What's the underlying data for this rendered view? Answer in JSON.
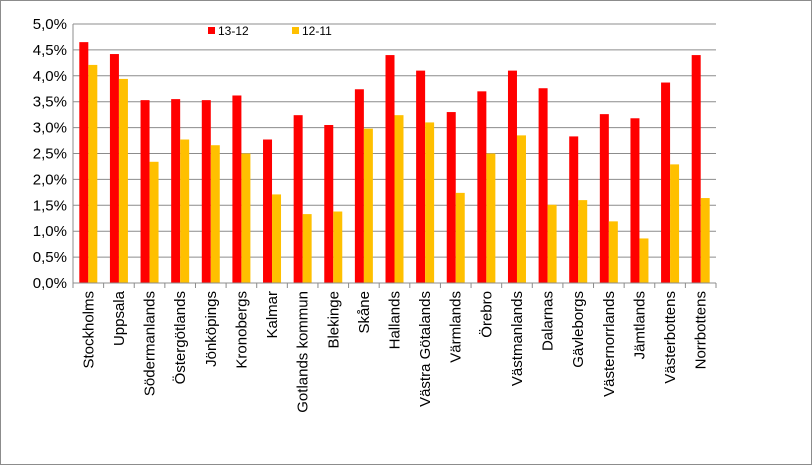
{
  "chart_data": {
    "type": "bar",
    "title": "",
    "xlabel": "",
    "ylabel": "",
    "ylim": [
      0,
      5
    ],
    "y_ticks": [
      "0,0%",
      "0,5%",
      "1,0%",
      "1,5%",
      "2,0%",
      "2,5%",
      "3,0%",
      "3,5%",
      "4,0%",
      "4,5%",
      "5,0%"
    ],
    "grid": true,
    "legend_position": "top",
    "categories": [
      "Stockholms",
      "Uppsala",
      "Södermanlands",
      "Östergötlands",
      "Jönköpings",
      "Kronobergs",
      "Kalmar",
      "Gotlands kommun",
      "Blekinge",
      "Skåne",
      "Hallands",
      "Västra Götalands",
      "Värmlands",
      "Örebro",
      "Västmanlands",
      "Dalarnas",
      "Gävleborgs",
      "Västernorrlands",
      "Jämtlands",
      "Västerbottens",
      "Norrbottens"
    ],
    "series": [
      {
        "name": "13-12",
        "color": "#ff0000",
        "values": [
          4.65,
          4.42,
          3.53,
          3.55,
          3.53,
          3.62,
          2.77,
          3.24,
          3.05,
          3.74,
          4.4,
          4.1,
          3.3,
          3.7,
          4.1,
          3.76,
          2.83,
          3.26,
          3.18,
          3.87,
          4.4
        ]
      },
      {
        "name": "12-11",
        "color": "#ffc000",
        "values": [
          4.21,
          3.94,
          2.34,
          2.77,
          2.66,
          2.5,
          1.71,
          1.33,
          1.38,
          2.98,
          3.24,
          3.1,
          1.74,
          2.5,
          2.85,
          1.51,
          1.6,
          1.19,
          0.86,
          2.29,
          1.64
        ]
      }
    ]
  }
}
